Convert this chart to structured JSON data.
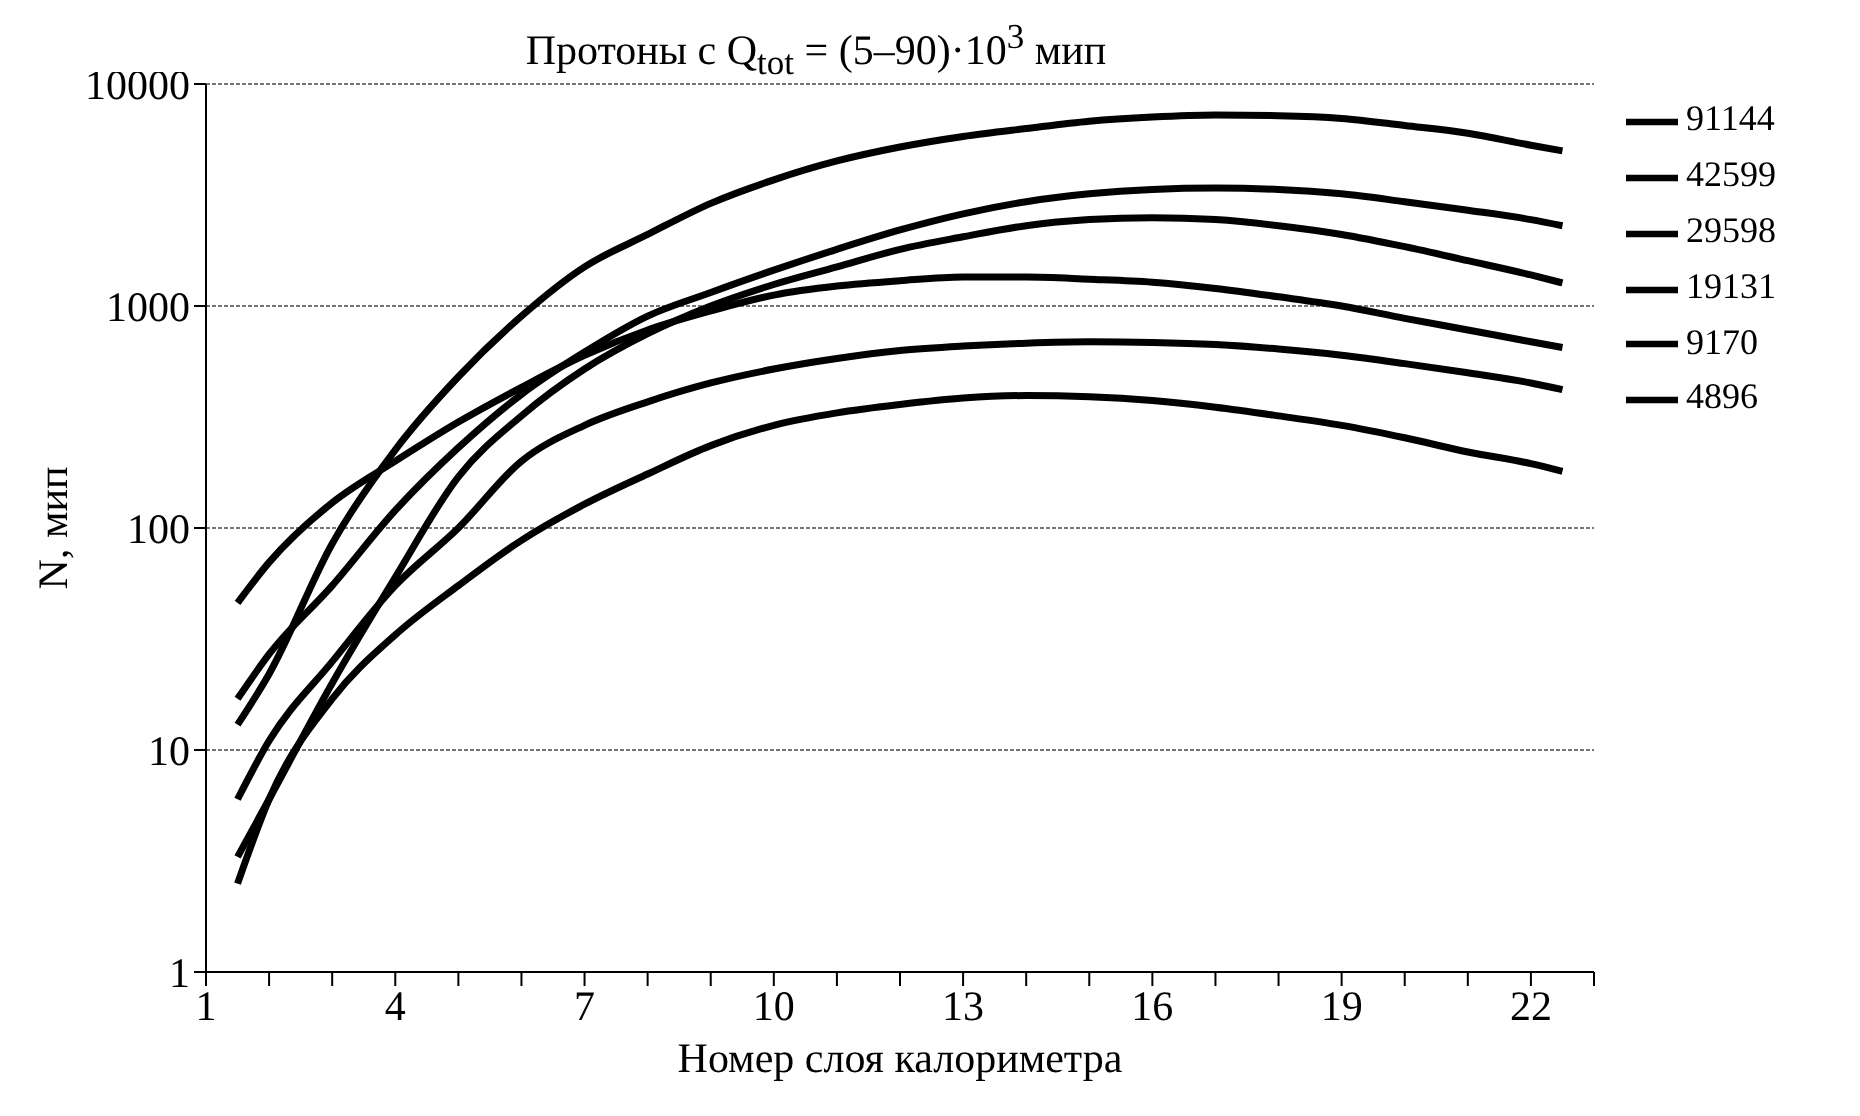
{
  "chart_data": {
    "type": "line",
    "title": "Протоны с Q$_{tot}$ = (5–90)·10$^{3}$ мип",
    "xlabel": "Номер слоя калориметра",
    "ylabel": "N, мип",
    "log": "y",
    "grid": "y",
    "legend": "right",
    "marker": "none",
    "line_style": "solid",
    "x": [
      1.5,
      2,
      3,
      4,
      5,
      6,
      7,
      8,
      9,
      10,
      11,
      12,
      13,
      14,
      15,
      16,
      17,
      18,
      19,
      20,
      21,
      22,
      22.5
    ],
    "xlim": [
      1,
      23
    ],
    "xticks": [
      1,
      {
        "value": 2,
        "label": null
      },
      {
        "value": 3,
        "label": null
      },
      4,
      {
        "value": 5,
        "label": null
      },
      {
        "value": 6,
        "label": null
      },
      7,
      {
        "value": 8,
        "label": null
      },
      {
        "value": 9,
        "label": null
      },
      10,
      {
        "value": 11,
        "label": null
      },
      {
        "value": 12,
        "label": null
      },
      13,
      {
        "value": 14,
        "label": null
      },
      {
        "value": 15,
        "label": null
      },
      16,
      {
        "value": 17,
        "label": null
      },
      {
        "value": 18,
        "label": null
      },
      19,
      {
        "value": 20,
        "label": null
      },
      {
        "value": 21,
        "label": null
      },
      22,
      {
        "value": 23,
        "label": null
      }
    ],
    "ylim": [
      1,
      10000
    ],
    "yticks": [
      1,
      10,
      100,
      1000,
      10000
    ],
    "series": [
      {
        "name": "91144",
        "color": "#000000",
        "values": [
          13,
          22,
          85,
          225,
          480,
          900,
          1500,
          2100,
          2900,
          3700,
          4500,
          5200,
          5800,
          6300,
          6800,
          7100,
          7250,
          7200,
          7000,
          6500,
          6000,
          5300,
          5000
        ]
      },
      {
        "name": "42599",
        "color": "#000000",
        "values": [
          17,
          27,
          55,
          120,
          230,
          400,
          620,
          900,
          1150,
          1450,
          1800,
          2200,
          2600,
          2950,
          3200,
          3350,
          3400,
          3350,
          3200,
          2950,
          2700,
          2450,
          2300
        ]
      },
      {
        "name": "29598",
        "color": "#000000",
        "values": [
          3.3,
          6,
          20,
          60,
          170,
          320,
          520,
          750,
          1000,
          1250,
          1500,
          1800,
          2050,
          2300,
          2450,
          2500,
          2450,
          2300,
          2100,
          1850,
          1600,
          1380,
          1270
        ]
      },
      {
        "name": "19131",
        "color": "#000000",
        "values": [
          46,
          70,
          130,
          200,
          300,
          430,
          600,
          780,
          950,
          1120,
          1230,
          1300,
          1350,
          1350,
          1320,
          1280,
          1200,
          1100,
          1000,
          880,
          780,
          690,
          650
        ]
      },
      {
        "name": "9170",
        "color": "#000000",
        "values": [
          6,
          11,
          25,
          55,
          100,
          200,
          290,
          370,
          450,
          520,
          580,
          630,
          660,
          680,
          690,
          685,
          670,
          640,
          600,
          550,
          500,
          450,
          420
        ]
      },
      {
        "name": "4896",
        "color": "#000000",
        "values": [
          2.5,
          6,
          17,
          33,
          55,
          88,
          128,
          175,
          235,
          290,
          330,
          360,
          385,
          395,
          390,
          375,
          350,
          320,
          290,
          255,
          220,
          195,
          180
        ]
      }
    ]
  }
}
